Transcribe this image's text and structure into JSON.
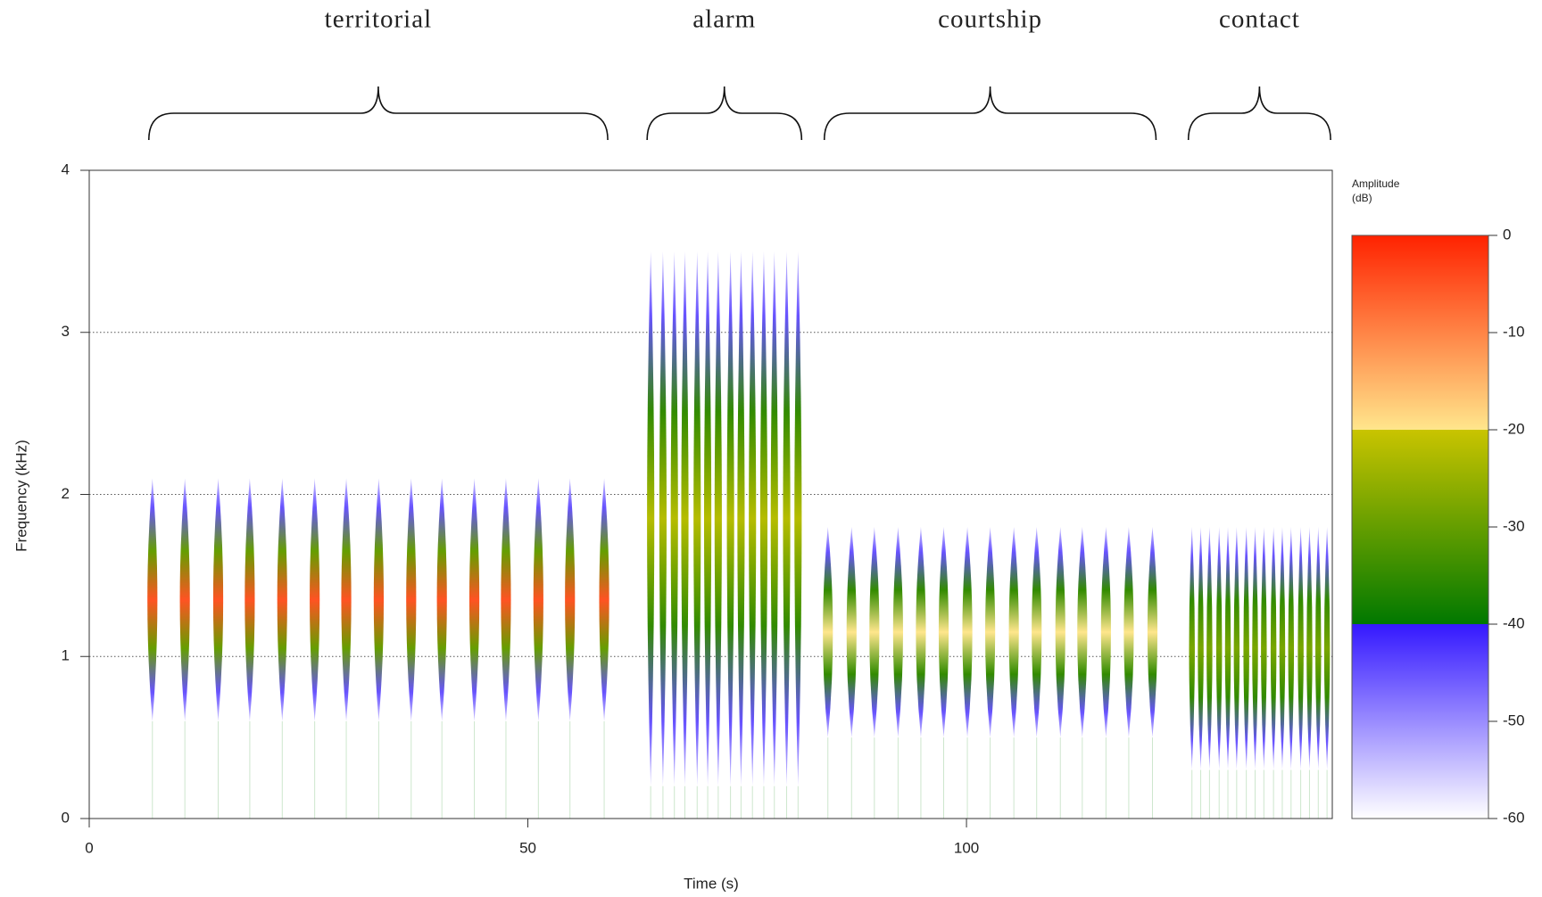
{
  "chart_data": {
    "type": "spectrogram",
    "xlabel": "Time (s)",
    "ylabel": "Frequency (kHz)",
    "xlim": [
      0,
      141.7
    ],
    "xticks": [
      0,
      50,
      100
    ],
    "ylim": [
      0,
      4
    ],
    "yticks": [
      0,
      1,
      2,
      3,
      4
    ],
    "grid": true,
    "segments": [
      {
        "name": "territorial",
        "freq_low": 0.6,
        "freq_high": 2.1,
        "peak_db": -5,
        "call_times": [
          7.2,
          10.9,
          14.7,
          18.3,
          22.0,
          25.7,
          29.3,
          33.0,
          36.7,
          40.2,
          43.9,
          47.5,
          51.2,
          54.8,
          58.7
        ]
      },
      {
        "name": "alarm",
        "freq_low": 0.2,
        "freq_high": 3.5,
        "peak_db": -22,
        "call_times": [
          64.0,
          65.4,
          66.7,
          67.9,
          69.3,
          70.5,
          71.7,
          73.1,
          74.3,
          75.6,
          76.9,
          78.1,
          79.5,
          80.8
        ]
      },
      {
        "name": "courtship",
        "freq_low": 0.5,
        "freq_high": 1.8,
        "peak_db": -20,
        "call_times": [
          84.2,
          86.9,
          89.5,
          92.2,
          94.8,
          97.4,
          100.1,
          102.7,
          105.4,
          108.0,
          110.7,
          113.2,
          115.9,
          118.5,
          121.2
        ]
      },
      {
        "name": "contact",
        "freq_low": 0.3,
        "freq_high": 1.8,
        "peak_db": -28,
        "call_times": [
          125.7,
          126.7,
          127.7,
          128.8,
          129.8,
          130.8,
          131.9,
          132.9,
          133.9,
          135.0,
          136.0,
          137.0,
          138.1,
          139.1,
          140.1,
          141.1
        ]
      }
    ],
    "colorbar": {
      "title": [
        "Amplitude",
        "(dB)"
      ],
      "lim": [
        -60,
        0
      ],
      "ticks": [
        0,
        -10,
        -20,
        -30,
        -40,
        -50,
        -60
      ],
      "bands": [
        {
          "from": 0,
          "to": -20,
          "colors": [
            "#ff2200",
            "#ffe68c"
          ]
        },
        {
          "from": -20,
          "to": -40,
          "colors": [
            "#c9c400",
            "#007800"
          ]
        },
        {
          "from": -40,
          "to": -60,
          "colors": [
            "#3418ff",
            "#ffffff"
          ]
        }
      ]
    }
  }
}
